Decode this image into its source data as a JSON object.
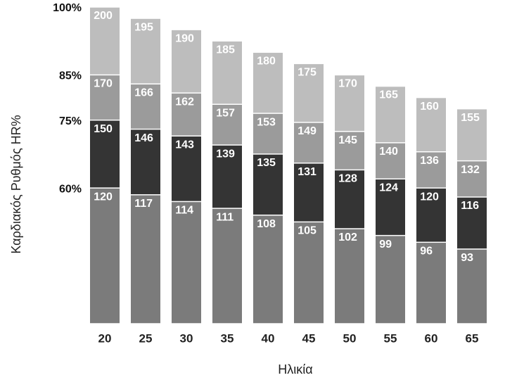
{
  "chart_data": {
    "type": "bar",
    "overlap": true,
    "x_label": "Ηλικία",
    "y_label": "Καρδιακός Ρυθμός HR%",
    "categories": [
      "20",
      "25",
      "30",
      "35",
      "40",
      "45",
      "50",
      "55",
      "60",
      "65"
    ],
    "series": [
      {
        "name": "60%",
        "color": "#7b7b7b",
        "values": [
          120,
          117,
          114,
          111,
          108,
          105,
          102,
          99,
          96,
          93
        ]
      },
      {
        "name": "75%",
        "color": "#343434",
        "values": [
          150,
          146,
          143,
          139,
          135,
          131,
          128,
          124,
          120,
          116
        ]
      },
      {
        "name": "85%",
        "color": "#9b9b9b",
        "values": [
          170,
          166,
          162,
          157,
          153,
          149,
          145,
          140,
          136,
          132
        ]
      },
      {
        "name": "100%",
        "color": "#bdbdbd",
        "values": [
          200,
          195,
          190,
          185,
          180,
          175,
          170,
          165,
          160,
          155
        ]
      }
    ],
    "ylim": [
      60,
      200
    ]
  }
}
